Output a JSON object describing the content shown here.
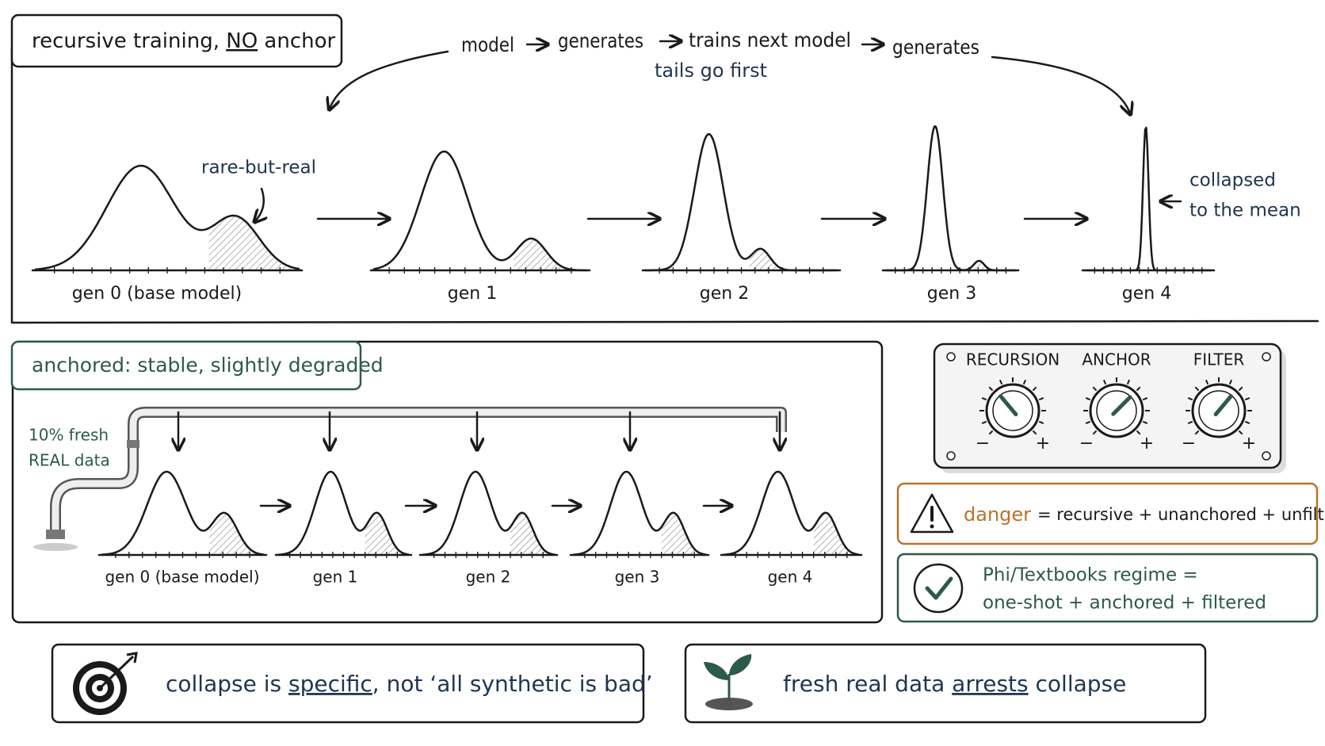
{
  "top": {
    "title": [
      "recursive training, ",
      "NO",
      " anchor"
    ],
    "flow": [
      "model",
      "generates",
      "trains next model",
      "generates"
    ],
    "flow_note": "tails go first",
    "tail_note": "rare-but-real",
    "collapse_note": [
      "collapsed",
      "to the mean"
    ],
    "gens": [
      "gen 0 (base model)",
      "gen 1",
      "gen 2",
      "gen 3",
      "gen 4"
    ]
  },
  "anchored": {
    "title": "anchored: stable, slightly degraded",
    "source": [
      "10% fresh",
      "REAL data"
    ],
    "gens": [
      "gen 0 (base model)",
      "gen 1",
      "gen 2",
      "gen 3",
      "gen 4"
    ]
  },
  "knobs": {
    "labels": [
      "RECURSION",
      "ANCHOR",
      "FILTER"
    ],
    "minus": "−",
    "plus": "+"
  },
  "danger": {
    "word": "danger",
    "rest": "= recursive + unanchored + unfiltered"
  },
  "regime": {
    "lines": [
      "Phi/Textbooks regime =",
      "one-shot + anchored + filtered"
    ]
  },
  "takeaways": [
    [
      "collapse is ",
      "specific",
      ", not ‘all synthetic is bad’"
    ],
    [
      "fresh real data ",
      "arrests",
      " collapse"
    ]
  ]
}
